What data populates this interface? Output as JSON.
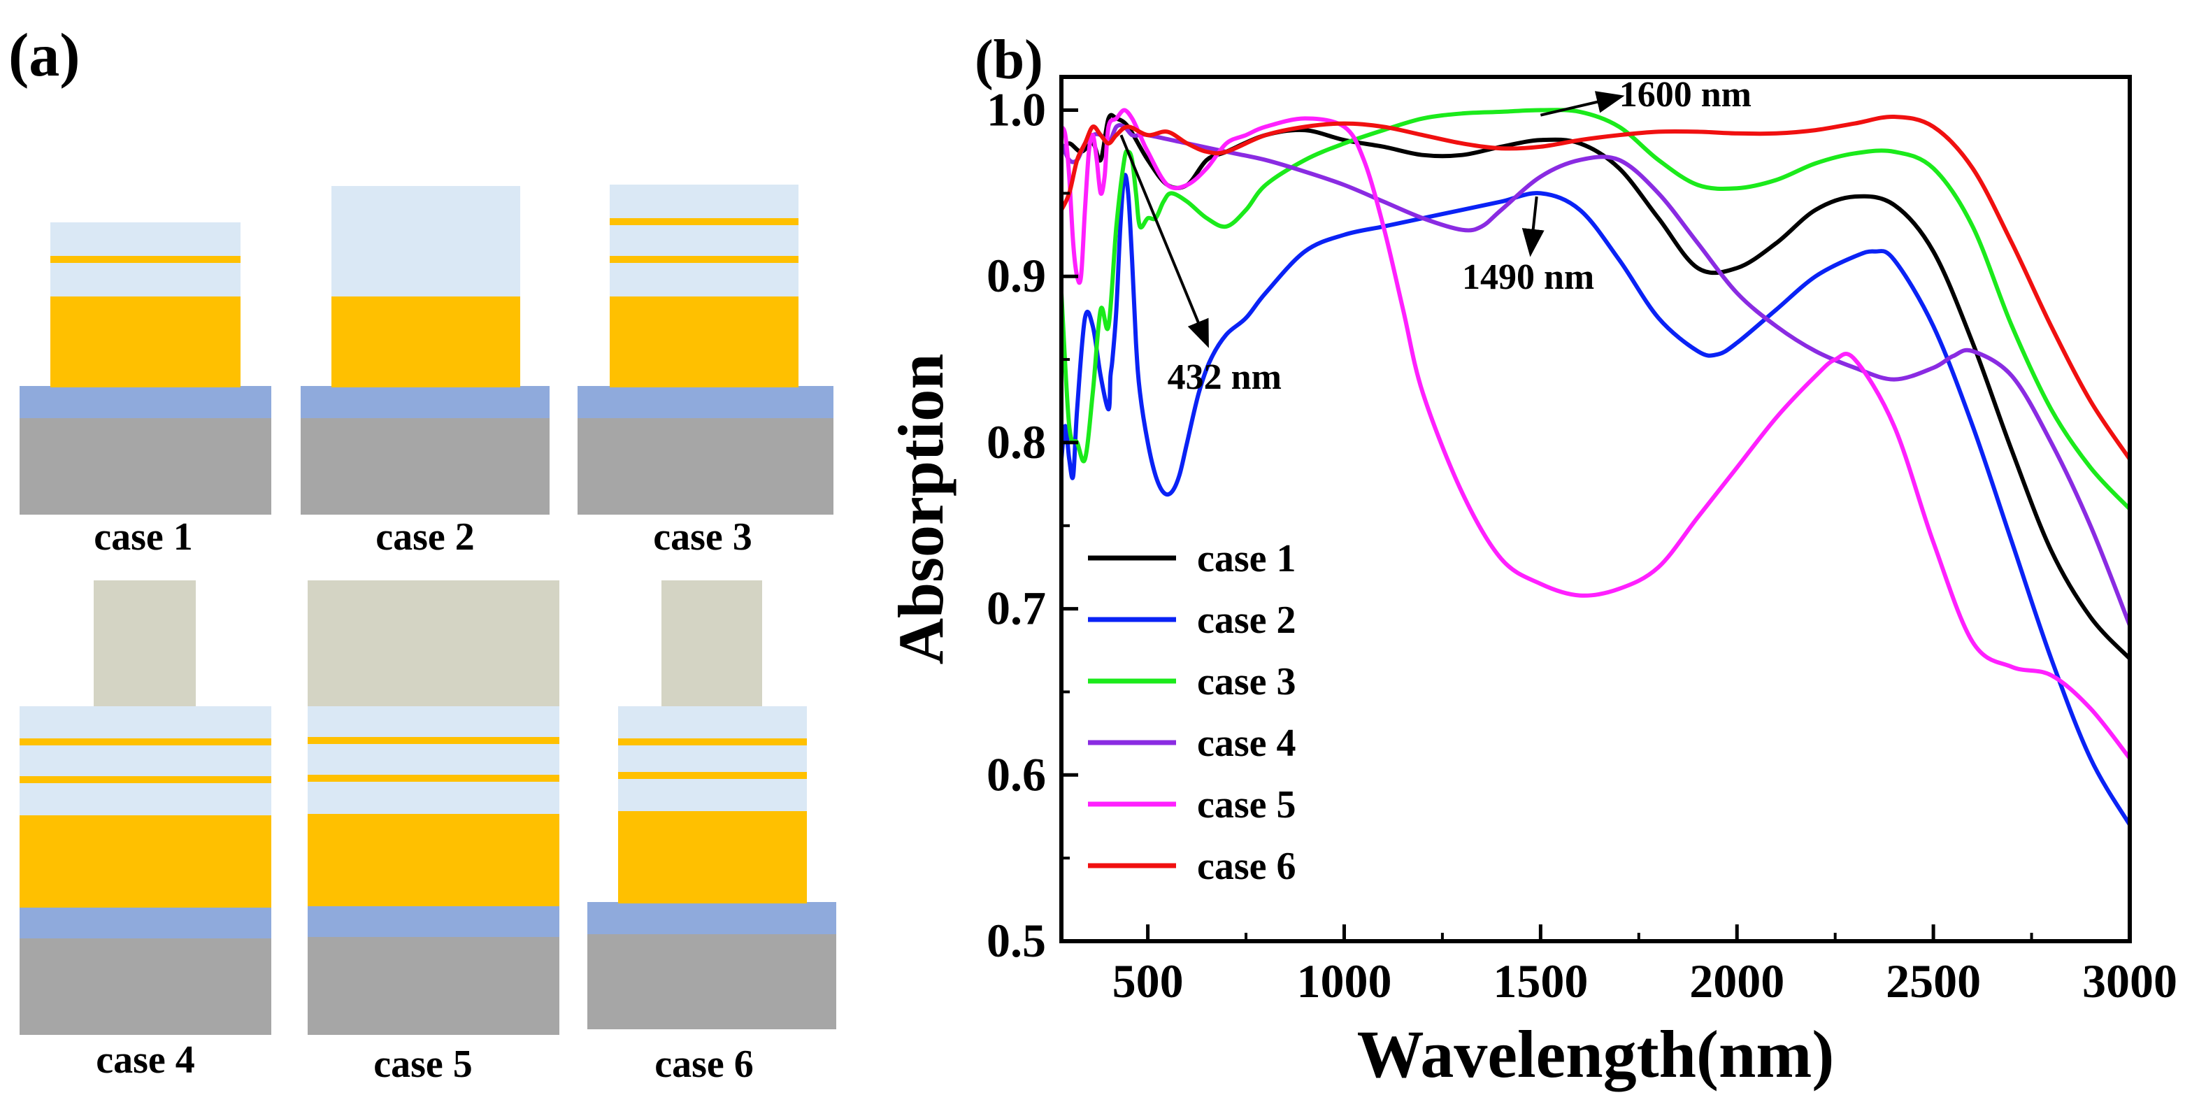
{
  "panel_a": {
    "label": "(a)",
    "colors": {
      "substrate": "#a6a6a6",
      "base_layer": "#8faadc",
      "metal": "#ffc000",
      "dielectric": "#dae8f5",
      "top": "#d4d4c4"
    },
    "cases": [
      "case 1",
      "case 2",
      "case 3",
      "case 4",
      "case 5",
      "case 6"
    ]
  },
  "chart_data": {
    "panel_label": "(b)",
    "type": "line",
    "xlabel": "Wavelength(nm)",
    "ylabel": "Absorption",
    "xlim": [
      280,
      3000
    ],
    "ylim": [
      0.5,
      1.02
    ],
    "xticks": [
      500,
      1000,
      1500,
      2000,
      2500,
      3000
    ],
    "yticks": [
      0.5,
      0.6,
      0.7,
      0.8,
      0.9,
      1.0
    ],
    "ytick_labels": [
      "0.5",
      "0.6",
      "0.7",
      "0.8",
      "0.9",
      "1.0"
    ],
    "legend_position": "bottom-left",
    "series": [
      {
        "name": "case 1",
        "color": "#000000",
        "x": [
          280,
          300,
          330,
          360,
          380,
          400,
          420,
          450,
          500,
          550,
          600,
          650,
          700,
          800,
          900,
          1000,
          1100,
          1200,
          1300,
          1400,
          1500,
          1600,
          1700,
          1800,
          1900,
          2000,
          2100,
          2200,
          2300,
          2400,
          2500,
          2600,
          2700,
          2800,
          2900,
          3000
        ],
        "y": [
          0.975,
          0.98,
          0.975,
          0.98,
          0.97,
          0.995,
          0.995,
          0.99,
          0.97,
          0.955,
          0.955,
          0.97,
          0.975,
          0.985,
          0.988,
          0.982,
          0.978,
          0.973,
          0.973,
          0.978,
          0.982,
          0.98,
          0.965,
          0.935,
          0.905,
          0.905,
          0.92,
          0.94,
          0.948,
          0.943,
          0.915,
          0.86,
          0.795,
          0.735,
          0.695,
          0.67
        ]
      },
      {
        "name": "case 2",
        "color": "#0a22f5",
        "x": [
          280,
          290,
          300,
          310,
          320,
          340,
          360,
          380,
          400,
          405,
          410,
          420,
          430,
          440,
          450,
          460,
          470,
          480,
          500,
          520,
          540,
          560,
          580,
          600,
          630,
          660,
          700,
          750,
          800,
          900,
          1000,
          1100,
          1200,
          1300,
          1400,
          1500,
          1600,
          1700,
          1800,
          1900,
          1950,
          2000,
          2100,
          2200,
          2300,
          2350,
          2400,
          2500,
          2600,
          2700,
          2800,
          2900,
          3000
        ],
        "y": [
          0.79,
          0.81,
          0.79,
          0.78,
          0.82,
          0.875,
          0.87,
          0.84,
          0.82,
          0.84,
          0.85,
          0.88,
          0.93,
          0.96,
          0.95,
          0.91,
          0.86,
          0.83,
          0.8,
          0.78,
          0.77,
          0.77,
          0.78,
          0.8,
          0.83,
          0.85,
          0.865,
          0.875,
          0.89,
          0.915,
          0.925,
          0.93,
          0.935,
          0.94,
          0.945,
          0.95,
          0.94,
          0.91,
          0.875,
          0.855,
          0.853,
          0.86,
          0.88,
          0.9,
          0.912,
          0.915,
          0.91,
          0.87,
          0.81,
          0.74,
          0.67,
          0.61,
          0.57
        ]
      },
      {
        "name": "case 3",
        "color": "#1bea1b",
        "x": [
          280,
          300,
          320,
          340,
          360,
          380,
          400,
          420,
          440,
          450,
          460,
          470,
          480,
          500,
          520,
          540,
          560,
          600,
          650,
          700,
          750,
          800,
          900,
          1000,
          1100,
          1200,
          1300,
          1400,
          1500,
          1600,
          1700,
          1800,
          1900,
          2000,
          2100,
          2200,
          2300,
          2400,
          2500,
          2600,
          2700,
          2800,
          2900,
          3000
        ],
        "y": [
          0.89,
          0.81,
          0.8,
          0.79,
          0.83,
          0.88,
          0.87,
          0.93,
          0.97,
          0.975,
          0.97,
          0.95,
          0.93,
          0.935,
          0.935,
          0.945,
          0.95,
          0.945,
          0.935,
          0.93,
          0.94,
          0.955,
          0.97,
          0.98,
          0.988,
          0.995,
          0.998,
          0.999,
          1.0,
          0.999,
          0.99,
          0.97,
          0.955,
          0.953,
          0.958,
          0.968,
          0.974,
          0.975,
          0.965,
          0.93,
          0.87,
          0.82,
          0.785,
          0.76
        ]
      },
      {
        "name": "case 4",
        "color": "#8a2be2",
        "x": [
          280,
          300,
          320,
          340,
          360,
          380,
          400,
          420,
          440,
          460,
          480,
          500,
          600,
          700,
          800,
          900,
          1000,
          1100,
          1200,
          1300,
          1350,
          1400,
          1500,
          1600,
          1700,
          1800,
          1900,
          2000,
          2100,
          2200,
          2300,
          2400,
          2500,
          2550,
          2600,
          2700,
          2800,
          2900,
          3000
        ],
        "y": [
          0.98,
          0.97,
          0.97,
          0.98,
          0.985,
          0.985,
          0.98,
          0.99,
          0.99,
          0.985,
          0.985,
          0.985,
          0.98,
          0.975,
          0.97,
          0.963,
          0.955,
          0.945,
          0.935,
          0.928,
          0.93,
          0.94,
          0.96,
          0.97,
          0.97,
          0.95,
          0.92,
          0.89,
          0.87,
          0.855,
          0.845,
          0.838,
          0.845,
          0.852,
          0.855,
          0.84,
          0.8,
          0.75,
          0.69
        ]
      },
      {
        "name": "case 5",
        "color": "#ff20ff",
        "x": [
          280,
          290,
          300,
          310,
          320,
          330,
          340,
          350,
          360,
          370,
          380,
          390,
          400,
          420,
          440,
          460,
          480,
          500,
          550,
          600,
          650,
          700,
          750,
          800,
          900,
          1000,
          1050,
          1100,
          1150,
          1200,
          1300,
          1400,
          1500,
          1600,
          1700,
          1800,
          1900,
          2000,
          2100,
          2200,
          2250,
          2300,
          2400,
          2500,
          2600,
          2700,
          2800,
          2900,
          3000
        ],
        "y": [
          0.99,
          0.985,
          0.96,
          0.92,
          0.9,
          0.9,
          0.94,
          0.975,
          0.985,
          0.97,
          0.95,
          0.96,
          0.99,
          0.995,
          1.0,
          0.995,
          0.985,
          0.975,
          0.955,
          0.955,
          0.965,
          0.98,
          0.985,
          0.99,
          0.995,
          0.99,
          0.97,
          0.93,
          0.88,
          0.83,
          0.77,
          0.73,
          0.715,
          0.708,
          0.712,
          0.725,
          0.755,
          0.785,
          0.815,
          0.84,
          0.85,
          0.85,
          0.81,
          0.74,
          0.68,
          0.665,
          0.66,
          0.64,
          0.61
        ]
      },
      {
        "name": "case 6",
        "color": "#f01010",
        "x": [
          280,
          300,
          320,
          340,
          360,
          380,
          400,
          420,
          450,
          500,
          550,
          600,
          650,
          700,
          800,
          900,
          1000,
          1100,
          1200,
          1300,
          1400,
          1500,
          1600,
          1700,
          1800,
          1900,
          2000,
          2100,
          2200,
          2300,
          2400,
          2500,
          2600,
          2700,
          2800,
          2900,
          3000
        ],
        "y": [
          0.94,
          0.95,
          0.97,
          0.98,
          0.99,
          0.985,
          0.98,
          0.985,
          0.99,
          0.985,
          0.987,
          0.98,
          0.975,
          0.975,
          0.985,
          0.99,
          0.992,
          0.99,
          0.985,
          0.98,
          0.977,
          0.978,
          0.982,
          0.985,
          0.987,
          0.987,
          0.986,
          0.986,
          0.988,
          0.992,
          0.996,
          0.99,
          0.965,
          0.92,
          0.87,
          0.825,
          0.79
        ]
      }
    ],
    "annotations": [
      {
        "text": "1600 nm",
        "arrow_from": [
          1500,
          0.997
        ],
        "arrow_to": [
          1700,
          1.008
        ],
        "text_at": [
          1700,
          1.01
        ]
      },
      {
        "text": "1490 nm",
        "arrow_from": [
          1490,
          0.948
        ],
        "arrow_to": [
          1475,
          0.915
        ],
        "text_at": [
          1300,
          0.9
        ]
      },
      {
        "text": "432 nm",
        "arrow_from": [
          432,
          0.985
        ],
        "arrow_to": [
          650,
          0.86
        ],
        "text_at": [
          550,
          0.84
        ]
      }
    ]
  }
}
